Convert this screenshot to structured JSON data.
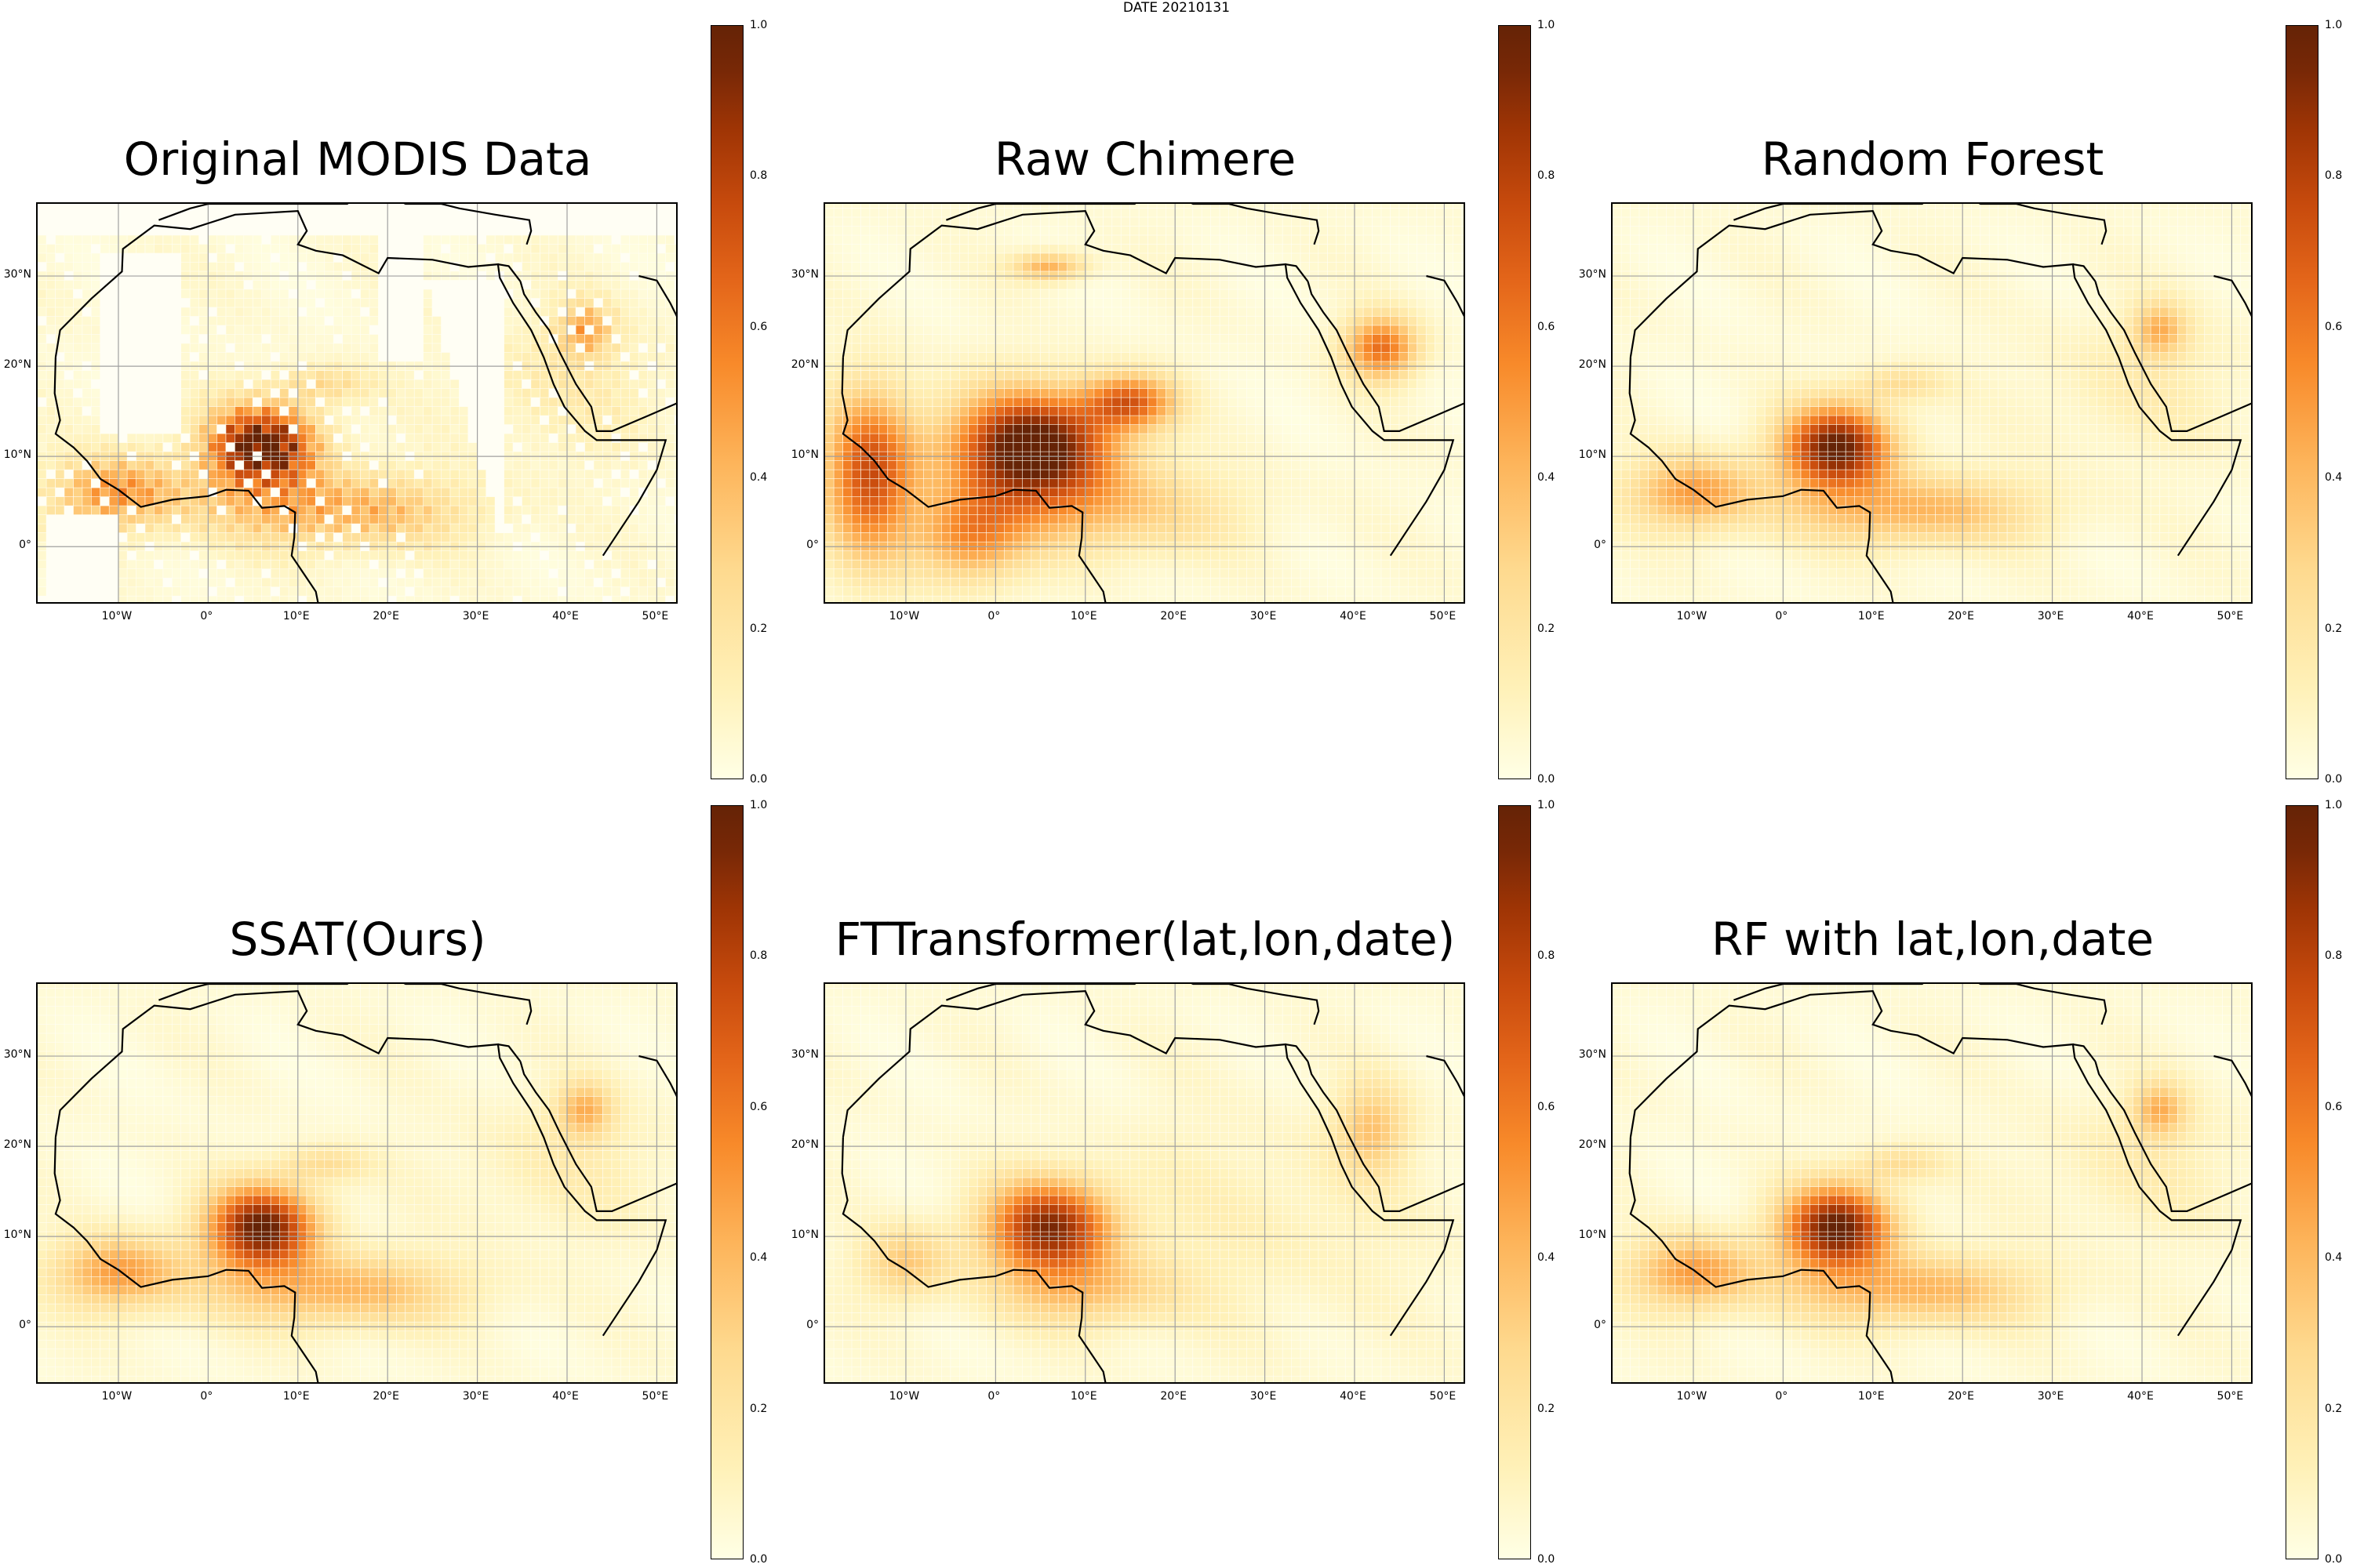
{
  "figure": {
    "suptitle": "DATE 20210131",
    "colormap": "YlOrBr",
    "colorbar_ticks": [
      "0.0",
      "0.2",
      "0.4",
      "0.6",
      "0.8",
      "1.0"
    ],
    "lon_ticks": [
      "10°W",
      "0°",
      "10°E",
      "20°E",
      "30°E",
      "40°E",
      "50°E"
    ],
    "lat_ticks": [
      "30°N",
      "20°N",
      "10°N",
      "0°"
    ]
  },
  "panels": [
    {
      "title": "Original MODIS Data",
      "missing_data": true,
      "dust_level": 0.9
    },
    {
      "title": "Raw Chimere",
      "missing_data": false,
      "dust_level": 1.0
    },
    {
      "title": "Random Forest",
      "missing_data": false,
      "dust_level": 0.85
    },
    {
      "title": "SSAT(Ours)",
      "missing_data": false,
      "dust_level": 0.85
    },
    {
      "title": "FTTransformer(lat,lon,date)",
      "missing_data": false,
      "dust_level": 0.8
    },
    {
      "title": "RF with lat,lon,date",
      "missing_data": false,
      "dust_level": 0.85
    }
  ],
  "chart_data": {
    "type": "heatmap",
    "title": "DATE 20210131",
    "xlabel": "",
    "ylabel": "",
    "xlim": [
      -19,
      52.5
    ],
    "ylim": [
      -6.5,
      38
    ],
    "colorbar_range": [
      0.0,
      1.0
    ],
    "grid": true,
    "panels": [
      "Original MODIS Data",
      "Raw Chimere",
      "Random Forest",
      "SSAT(Ours)",
      "FTTransformer(lat,lon,date)",
      "RF with lat,lon,date"
    ]
  }
}
